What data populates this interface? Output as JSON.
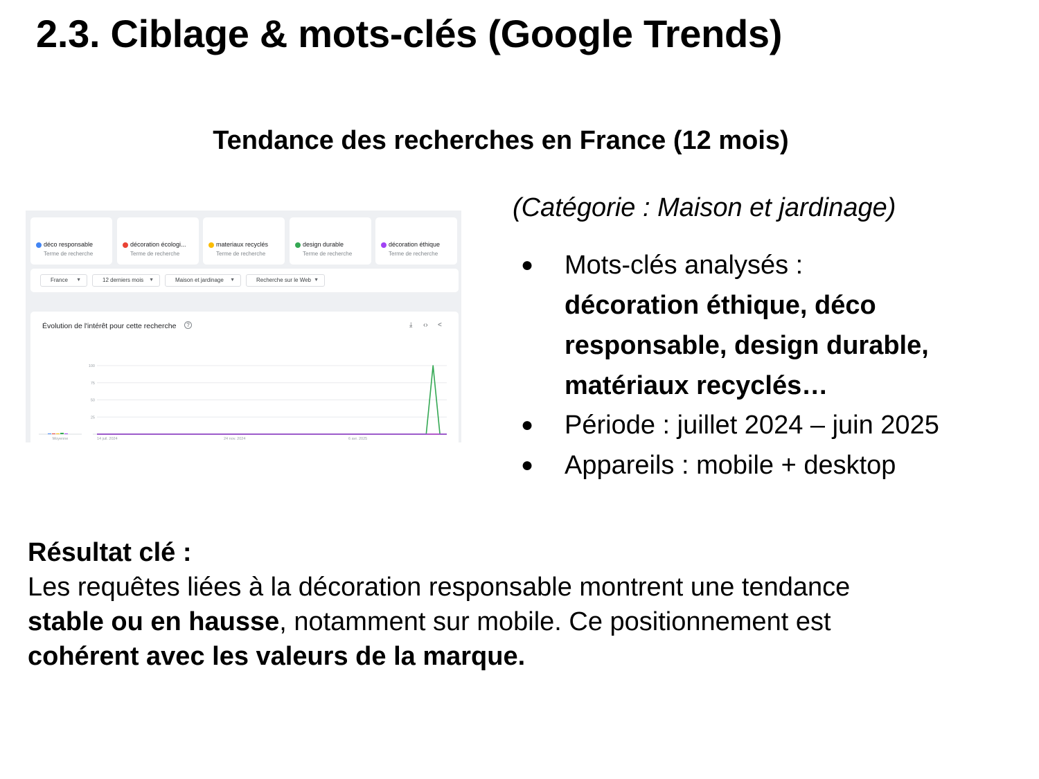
{
  "slide": {
    "title": "2.3. Ciblage & mots-clés (Google Trends)",
    "subtitle": "Tendance des recherches en France (12 mois)"
  },
  "trends_screenshot": {
    "terms": [
      {
        "name": "déco responsable",
        "sub": "Terme de recherche",
        "color": "#4285f4"
      },
      {
        "name": "décoration écologi...",
        "sub": "Terme de recherche",
        "color": "#ea4335"
      },
      {
        "name": "materiaux recyclés",
        "sub": "Terme de recherche",
        "color": "#fbbc04"
      },
      {
        "name": "design durable",
        "sub": "Terme de recherche",
        "color": "#34a853"
      },
      {
        "name": "décoration éthique",
        "sub": "Terme de recherche",
        "color": "#a142f4"
      }
    ],
    "filters": [
      "France",
      "12 derniers mois",
      "Maison et jardinage",
      "Recherche sur le Web"
    ],
    "panel_title": "Évolution de l'intérêt pour cette recherche",
    "icons": [
      "help-icon",
      "download-icon",
      "embed-icon",
      "share-icon"
    ]
  },
  "chart_data": {
    "type": "line",
    "title": "Évolution de l'intérêt pour cette recherche",
    "xlabel": "",
    "ylabel": "",
    "ylim": [
      0,
      100
    ],
    "yticks": [
      100,
      75,
      50,
      25
    ],
    "xtick_labels": [
      "14 juil. 2024",
      "24 nov. 2024",
      "6 avr. 2025"
    ],
    "average_label": "Moyenne",
    "grid": true,
    "x": [
      0,
      1,
      2,
      3,
      4,
      5,
      6,
      7,
      8,
      9,
      10,
      11,
      12,
      13,
      14,
      15,
      16,
      17,
      18,
      19,
      20,
      21,
      22,
      23,
      24,
      25,
      26,
      27,
      28,
      29,
      30,
      31,
      32,
      33,
      34,
      35,
      36,
      37,
      38,
      39,
      40,
      41,
      42,
      43,
      44,
      45,
      46,
      47,
      48,
      49,
      50,
      51
    ],
    "series": [
      {
        "color": "#4285f4",
        "average": 0,
        "values": [
          0,
          0,
          0,
          0,
          0,
          0,
          0,
          0,
          0,
          0,
          0,
          0,
          0,
          0,
          0,
          0,
          0,
          0,
          0,
          0,
          0,
          0,
          0,
          0,
          0,
          0,
          0,
          0,
          0,
          0,
          0,
          0,
          0,
          0,
          0,
          0,
          0,
          0,
          0,
          0,
          0,
          0,
          0,
          0,
          0,
          0,
          0,
          0,
          0,
          0,
          0,
          0
        ]
      },
      {
        "color": "#ea4335",
        "average": 0,
        "values": [
          0,
          0,
          0,
          0,
          0,
          0,
          0,
          0,
          0,
          0,
          0,
          0,
          0,
          0,
          0,
          0,
          0,
          0,
          0,
          0,
          0,
          0,
          0,
          0,
          0,
          0,
          0,
          0,
          0,
          0,
          0,
          0,
          0,
          0,
          0,
          0,
          0,
          0,
          0,
          0,
          0,
          0,
          0,
          0,
          0,
          0,
          0,
          0,
          0,
          0,
          0,
          0
        ]
      },
      {
        "color": "#fbbc04",
        "average": 0,
        "values": [
          0,
          0,
          0,
          0,
          0,
          0,
          0,
          0,
          0,
          0,
          0,
          0,
          0,
          0,
          0,
          0,
          0,
          0,
          0,
          0,
          0,
          0,
          0,
          0,
          0,
          0,
          0,
          0,
          0,
          0,
          0,
          0,
          0,
          0,
          0,
          0,
          0,
          0,
          0,
          0,
          0,
          0,
          0,
          0,
          0,
          0,
          0,
          0,
          0,
          0,
          0,
          0
        ]
      },
      {
        "color": "#34a853",
        "average": 2,
        "values": [
          0,
          0,
          0,
          0,
          0,
          0,
          0,
          0,
          0,
          0,
          0,
          0,
          0,
          0,
          0,
          0,
          0,
          0,
          0,
          0,
          0,
          0,
          0,
          0,
          0,
          0,
          0,
          0,
          0,
          0,
          0,
          0,
          0,
          0,
          0,
          0,
          0,
          0,
          0,
          0,
          0,
          0,
          0,
          0,
          0,
          0,
          0,
          0,
          0,
          100,
          0,
          0
        ]
      },
      {
        "color": "#a142f4",
        "average": 0,
        "values": [
          0,
          0,
          0,
          0,
          0,
          0,
          0,
          0,
          0,
          0,
          0,
          0,
          0,
          0,
          0,
          0,
          0,
          0,
          0,
          0,
          0,
          0,
          0,
          0,
          0,
          0,
          0,
          0,
          0,
          0,
          0,
          0,
          0,
          0,
          0,
          0,
          0,
          0,
          0,
          0,
          0,
          0,
          0,
          0,
          0,
          0,
          0,
          0,
          0,
          0,
          0,
          0
        ]
      }
    ]
  },
  "right_column": {
    "category": "(Catégorie : Maison et jardinage)",
    "bullet_symbol": "●",
    "keywords_label": "Mots-clés analysés :",
    "keywords_lines": [
      " décoration éthique, déco",
      "responsable, design durable,",
      "matériaux recyclés…"
    ],
    "period": "Période : juillet 2024 – juin 2025",
    "devices": "Appareils : mobile + desktop"
  },
  "result": {
    "heading": "Résultat clé :",
    "line1": "Les requêtes liées à la décoration responsable montrent une tendance",
    "line2_bold": "stable ou en hausse",
    "line2_rest": ", notamment sur mobile. Ce positionnement est",
    "line3_bold": "cohérent avec les valeurs de la marque."
  }
}
